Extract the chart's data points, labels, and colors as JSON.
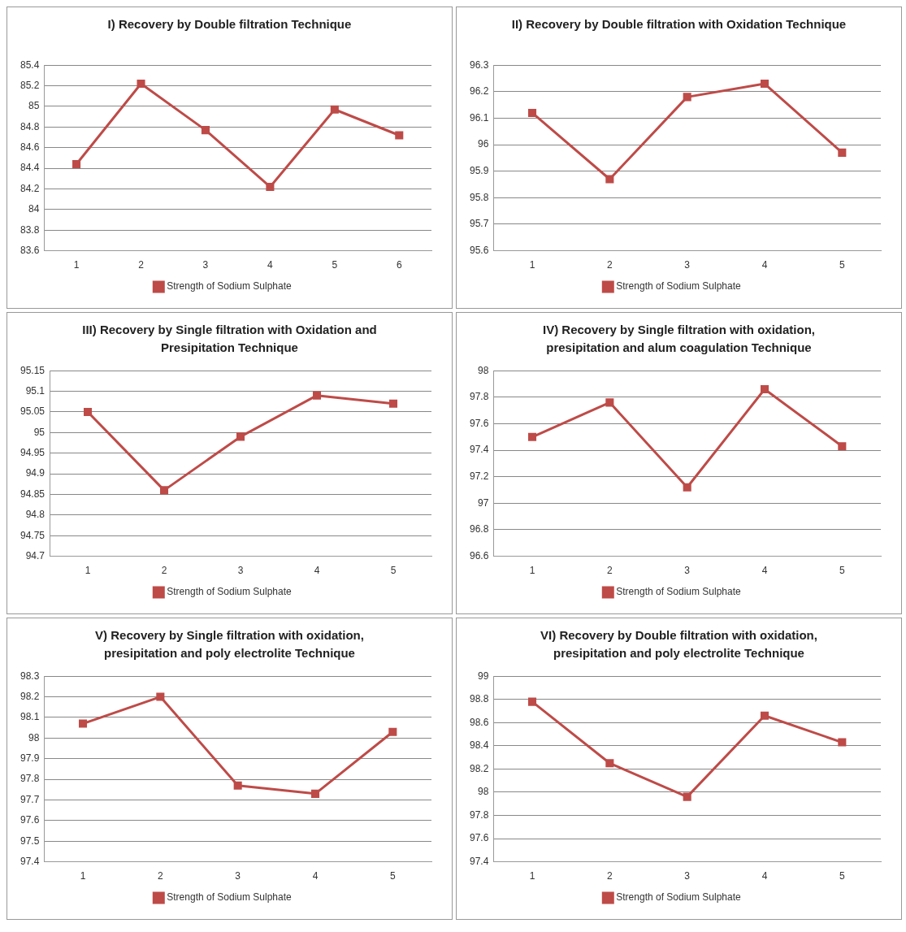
{
  "chart_data": [
    {
      "type": "line",
      "title": "I) Recovery by Double filtration Technique",
      "categories": [
        "1",
        "2",
        "3",
        "4",
        "5",
        "6"
      ],
      "series": [
        {
          "name": "Strength of Sodium Sulphate",
          "color": "#be4b48",
          "values": [
            84.44,
            85.22,
            84.77,
            84.22,
            84.97,
            84.72
          ]
        }
      ],
      "ylim": [
        83.6,
        85.4
      ],
      "yticks": [
        83.6,
        83.8,
        84,
        84.2,
        84.4,
        84.6,
        84.8,
        85,
        85.2,
        85.4
      ],
      "grid": "y",
      "legend": "bottom",
      "marker": "square",
      "line_style": "solid"
    },
    {
      "type": "line",
      "title": "II) Recovery by Double filtration with Oxidation Technique",
      "categories": [
        "1",
        "2",
        "3",
        "4",
        "5"
      ],
      "series": [
        {
          "name": "Strength of Sodium Sulphate",
          "color": "#be4b48",
          "values": [
            96.12,
            95.87,
            96.18,
            96.23,
            95.97
          ]
        }
      ],
      "ylim": [
        95.6,
        96.3
      ],
      "yticks": [
        95.6,
        95.7,
        95.8,
        95.9,
        96,
        96.1,
        96.2,
        96.3
      ],
      "grid": "y",
      "legend": "bottom",
      "marker": "square",
      "line_style": "solid"
    },
    {
      "type": "line",
      "title": "III) Recovery by Single filtration with Oxidation and Presipitation Technique",
      "categories": [
        "1",
        "2",
        "3",
        "4",
        "5"
      ],
      "series": [
        {
          "name": "Strength of Sodium Sulphate",
          "color": "#be4b48",
          "values": [
            95.05,
            94.86,
            94.99,
            95.09,
            95.07
          ]
        }
      ],
      "ylim": [
        94.7,
        95.15
      ],
      "yticks": [
        94.7,
        94.75,
        94.8,
        94.85,
        94.9,
        94.95,
        95,
        95.05,
        95.1,
        95.15
      ],
      "grid": "y",
      "legend": "bottom",
      "marker": "square",
      "line_style": "solid"
    },
    {
      "type": "line",
      "title": "IV) Recovery by Single filtration with oxidation, presipitation and alum coagulation Technique",
      "categories": [
        "1",
        "2",
        "3",
        "4",
        "5"
      ],
      "series": [
        {
          "name": "Strength of Sodium Sulphate",
          "color": "#be4b48",
          "values": [
            97.5,
            97.76,
            97.12,
            97.86,
            97.43
          ]
        }
      ],
      "ylim": [
        96.6,
        98
      ],
      "yticks": [
        96.6,
        96.8,
        97,
        97.2,
        97.4,
        97.6,
        97.8,
        98
      ],
      "grid": "y",
      "legend": "bottom",
      "marker": "square",
      "line_style": "solid"
    },
    {
      "type": "line",
      "title": "V) Recovery by Single filtration with oxidation, presipitation and poly electrolite Technique",
      "categories": [
        "1",
        "2",
        "3",
        "4",
        "5"
      ],
      "series": [
        {
          "name": "Strength of Sodium Sulphate",
          "color": "#be4b48",
          "values": [
            98.07,
            98.2,
            97.77,
            97.73,
            98.03
          ]
        }
      ],
      "ylim": [
        97.4,
        98.3
      ],
      "yticks": [
        97.4,
        97.5,
        97.6,
        97.7,
        97.8,
        97.9,
        98,
        98.1,
        98.2,
        98.3
      ],
      "grid": "y",
      "legend": "bottom",
      "marker": "square",
      "line_style": "solid"
    },
    {
      "type": "line",
      "title": "VI) Recovery by Double filtration with oxidation, presipitation and poly electrolite Technique",
      "categories": [
        "1",
        "2",
        "3",
        "4",
        "5"
      ],
      "series": [
        {
          "name": "Strength of Sodium Sulphate",
          "color": "#be4b48",
          "values": [
            98.78,
            98.25,
            97.96,
            98.66,
            98.43
          ]
        }
      ],
      "ylim": [
        97.4,
        99
      ],
      "yticks": [
        97.4,
        97.6,
        97.8,
        98,
        98.2,
        98.4,
        98.6,
        98.8,
        99
      ],
      "grid": "y",
      "legend": "bottom",
      "marker": "square",
      "line_style": "solid"
    }
  ]
}
